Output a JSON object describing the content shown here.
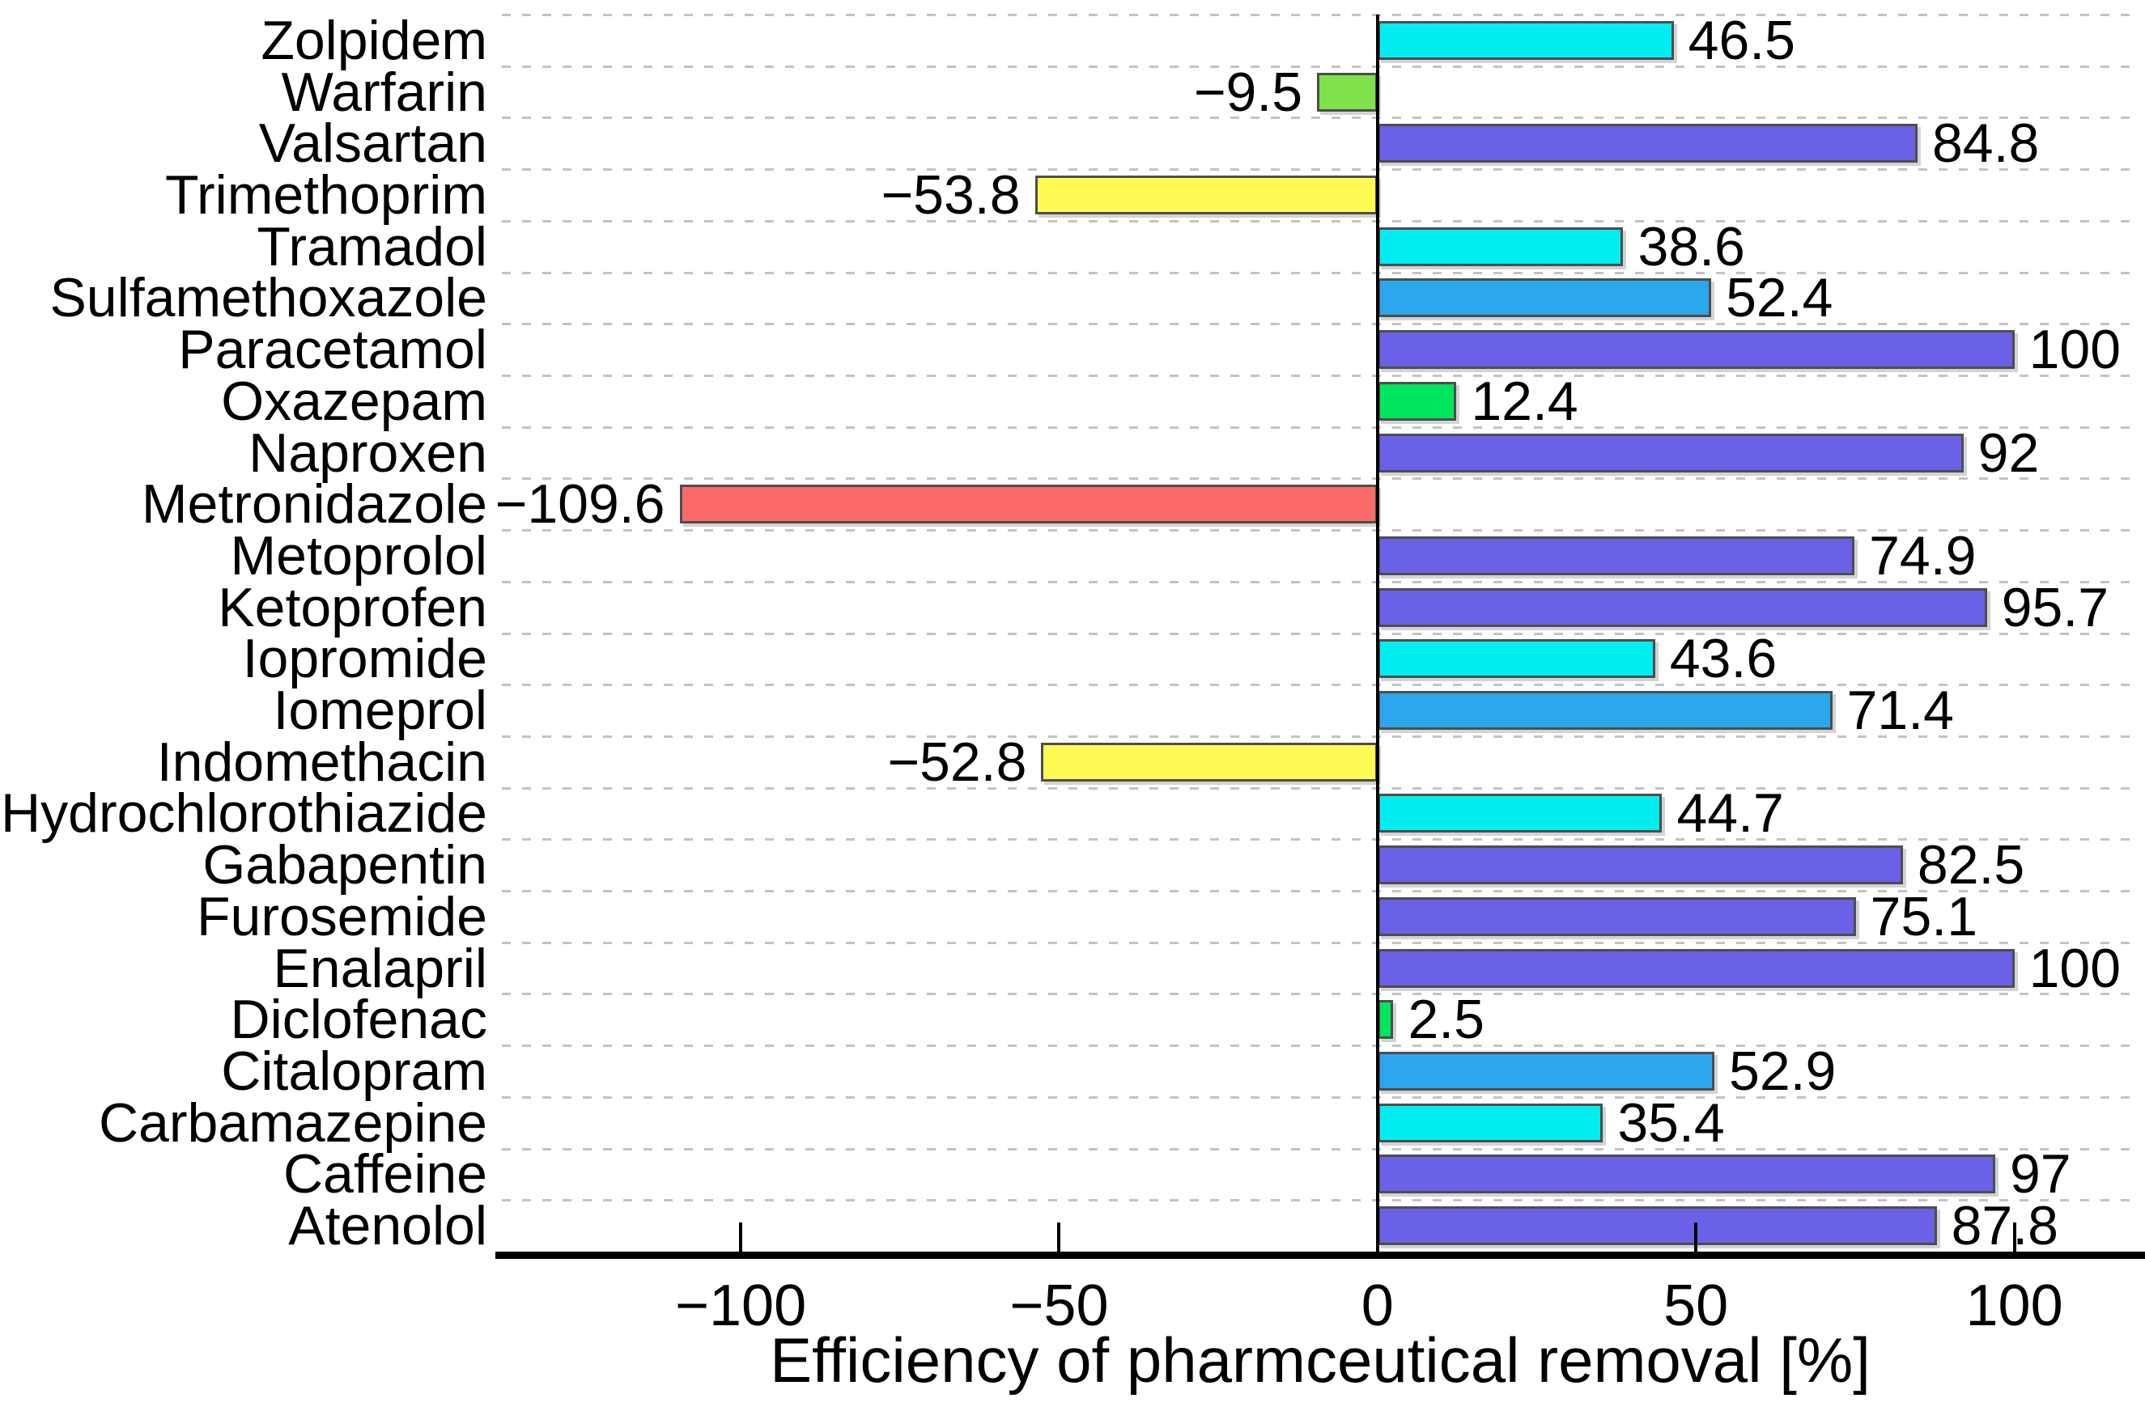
{
  "figure": {
    "background_color": "#ffffff",
    "axis_color": "#000000",
    "grid_color": "#c3c3c3",
    "bar_border_color": "#4d4d4d"
  },
  "chart_data": {
    "type": "bar",
    "orientation": "horizontal",
    "title": "",
    "xlabel": "Efficiency of pharmceutical removal [%]",
    "ylabel": "",
    "xlim": [
      -137.5,
      119.5
    ],
    "xticks": [
      -100,
      -50,
      0,
      50,
      100
    ],
    "xtick_labels": [
      "−100",
      "−50",
      "0",
      "50",
      "100"
    ],
    "grid": "dashed horizontal row separators",
    "legend_position": "none",
    "zero_line": true,
    "categories": [
      "Zolpidem",
      "Warfarin",
      "Valsartan",
      "Trimethoprim",
      "Tramadol",
      "Sulfamethoxazole",
      "Paracetamol",
      "Oxazepam",
      "Naproxen",
      "Metronidazole",
      "Metoprolol",
      "Ketoprofen",
      "Iopromide",
      "Iomeprol",
      "Indomethacin",
      "Hydrochlorothiazide",
      "Gabapentin",
      "Furosemide",
      "Enalapril",
      "Diclofenac",
      "Citalopram",
      "Carbamazepine",
      "Caffeine",
      "Atenolol"
    ],
    "values": [
      46.5,
      -9.5,
      84.8,
      -53.8,
      38.6,
      52.4,
      100,
      12.4,
      92,
      -109.6,
      74.9,
      95.7,
      43.6,
      71.4,
      -52.8,
      44.7,
      82.5,
      75.1,
      100,
      2.5,
      52.9,
      35.4,
      97,
      87.8
    ],
    "value_labels": [
      "46.5",
      "−9.5",
      "84.8",
      "−53.8",
      "38.6",
      "52.4",
      "100",
      "12.4",
      "92",
      "−109.6",
      "74.9",
      "95.7",
      "43.6",
      "71.4",
      "−52.8",
      "44.7",
      "82.5",
      "75.1",
      "100",
      "2.5",
      "52.9",
      "35.4",
      "97",
      "87.8"
    ],
    "bar_colors": [
      "#00EEF0",
      "#7FE24A",
      "#6B61E6",
      "#FFFB55",
      "#00EEF0",
      "#2BA7EE",
      "#6B61E6",
      "#00E65C",
      "#6B61E6",
      "#FC6A6A",
      "#6B61E6",
      "#6B61E6",
      "#00EEF0",
      "#2BA7EE",
      "#FFFB55",
      "#00EEF0",
      "#6B61E6",
      "#6B61E6",
      "#6B61E6",
      "#00E65C",
      "#2BA7EE",
      "#00EEF0",
      "#6B61E6",
      "#6B61E6"
    ]
  }
}
